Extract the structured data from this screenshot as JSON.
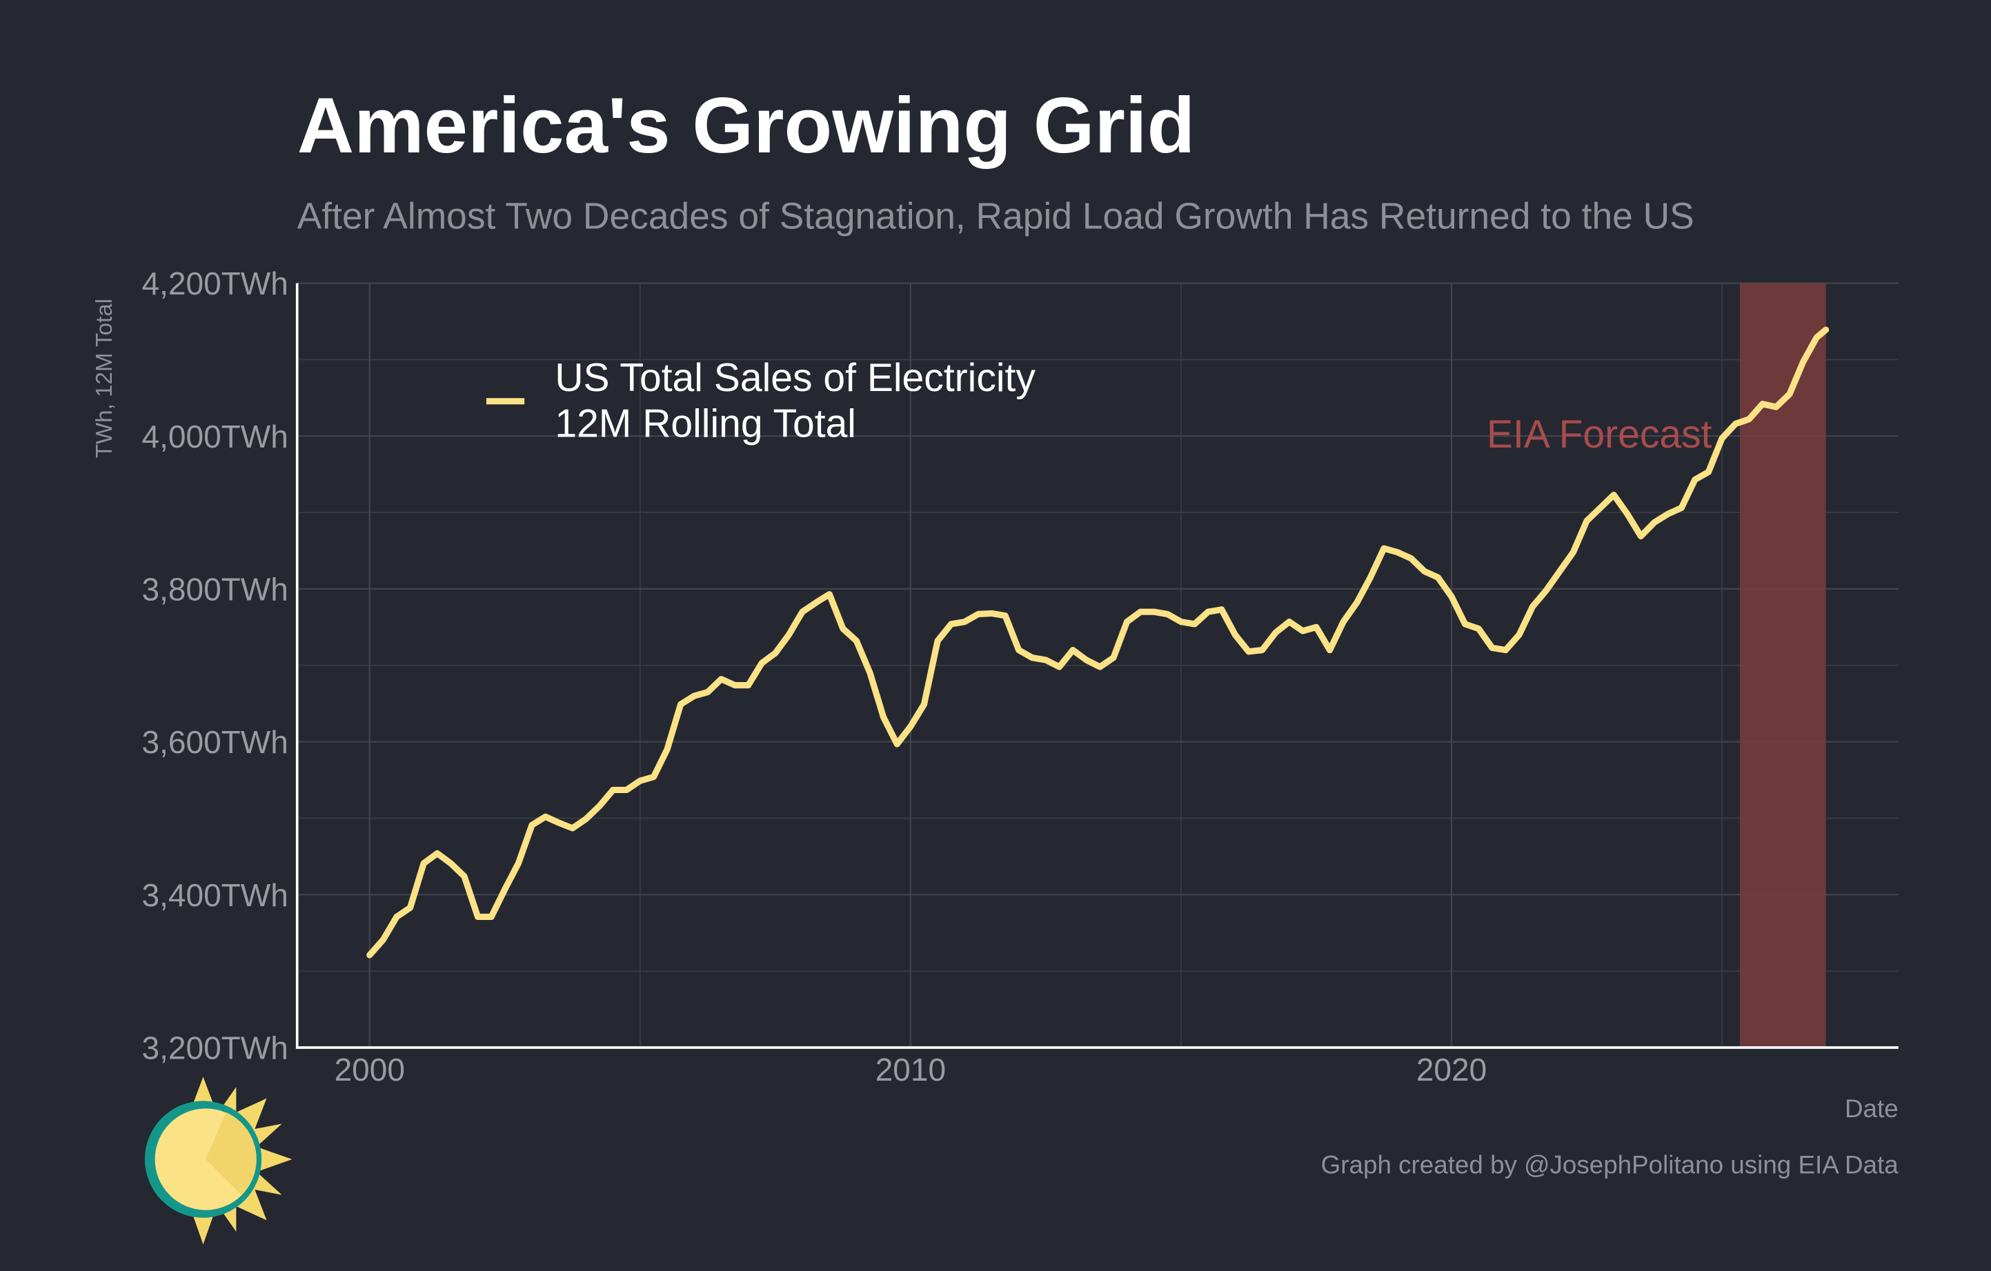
{
  "chart_data": {
    "type": "line",
    "title": "America's Growing Grid",
    "subtitle": "After Almost Two Decades of Stagnation, Rapid Load Growth Has Returned to the US",
    "y_label": "TWh, 12M Total",
    "x_label": "Date",
    "caption": "Graph created by @JosephPolitano using EIA Data",
    "xlim": [
      1998.66,
      2028.26
    ],
    "ylim": [
      3200,
      4200
    ],
    "xticks": [
      2000,
      2010,
      2020
    ],
    "x_minor_ticks": [
      2005,
      2015,
      2025
    ],
    "yticks": [
      {
        "value": 3200,
        "label": "3,200TWh"
      },
      {
        "value": 3400,
        "label": "3,400TWh"
      },
      {
        "value": 3600,
        "label": "3,600TWh"
      },
      {
        "value": 3800,
        "label": "3,800TWh"
      },
      {
        "value": 4000,
        "label": "4,000TWh"
      },
      {
        "value": 4200,
        "label": "4,200TWh"
      }
    ],
    "y_minor_ticks": [
      3300,
      3500,
      3700,
      3900,
      4100
    ],
    "grid": true,
    "legend_position": "top-left",
    "forecast_band": {
      "label": "EIA Forecast",
      "x_range": [
        2025.33,
        2026.92
      ],
      "color": "#7a3c3c",
      "label_color": "#a84c4c"
    },
    "series": [
      {
        "name": "US Total Sales of Electricity\n12M Rolling Total",
        "color": "#fbe286",
        "x": [
          2000,
          2000.25,
          2000.5,
          2000.75,
          2001,
          2001.25,
          2001.5,
          2001.75,
          2002,
          2002.25,
          2002.5,
          2002.75,
          2003,
          2003.25,
          2003.5,
          2003.75,
          2004,
          2004.25,
          2004.5,
          2004.75,
          2005,
          2005.25,
          2005.5,
          2005.75,
          2006,
          2006.25,
          2006.5,
          2006.75,
          2007,
          2007.25,
          2007.5,
          2007.75,
          2008,
          2008.25,
          2008.5,
          2008.75,
          2009,
          2009.25,
          2009.5,
          2009.75,
          2010,
          2010.25,
          2010.5,
          2010.75,
          2011,
          2011.25,
          2011.5,
          2011.75,
          2012,
          2012.25,
          2012.5,
          2012.75,
          2013,
          2013.25,
          2013.5,
          2013.75,
          2014,
          2014.25,
          2014.5,
          2014.75,
          2015,
          2015.25,
          2015.5,
          2015.75,
          2016,
          2016.25,
          2016.5,
          2016.75,
          2017,
          2017.25,
          2017.5,
          2017.75,
          2018,
          2018.25,
          2018.5,
          2018.75,
          2019,
          2019.25,
          2019.5,
          2019.75,
          2020,
          2020.25,
          2020.5,
          2020.75,
          2021,
          2021.25,
          2021.5,
          2021.75,
          2022,
          2022.25,
          2022.5,
          2022.75,
          2023,
          2023.25,
          2023.5,
          2023.75,
          2024,
          2024.25,
          2024.5,
          2024.75,
          2025,
          2025.25,
          2025.5,
          2025.75,
          2026,
          2026.25,
          2026.5,
          2026.75,
          2026.92
        ],
        "values": [
          3321,
          3341,
          3371,
          3383,
          3441,
          3454,
          3441,
          3424,
          3371,
          3371,
          3407,
          3441,
          3491,
          3502,
          3494,
          3487,
          3499,
          3516,
          3537,
          3537,
          3549,
          3554,
          3590,
          3649,
          3660,
          3665,
          3682,
          3674,
          3674,
          3703,
          3716,
          3740,
          3770,
          3782,
          3793,
          3748,
          3732,
          3690,
          3632,
          3597,
          3620,
          3649,
          3732,
          3754,
          3757,
          3767,
          3768,
          3765,
          3720,
          3710,
          3707,
          3698,
          3720,
          3707,
          3698,
          3710,
          3757,
          3770,
          3770,
          3767,
          3757,
          3754,
          3770,
          3773,
          3740,
          3718,
          3720,
          3743,
          3757,
          3745,
          3750,
          3720,
          3757,
          3782,
          3815,
          3853,
          3848,
          3840,
          3823,
          3815,
          3790,
          3754,
          3748,
          3723,
          3720,
          3740,
          3777,
          3798,
          3823,
          3848,
          3889,
          3906,
          3923,
          3898,
          3869,
          3887,
          3898,
          3906,
          3943,
          3953,
          3997,
          4016,
          4022,
          4042,
          4038,
          4055,
          4097,
          4129,
          4139
        ]
      }
    ]
  }
}
